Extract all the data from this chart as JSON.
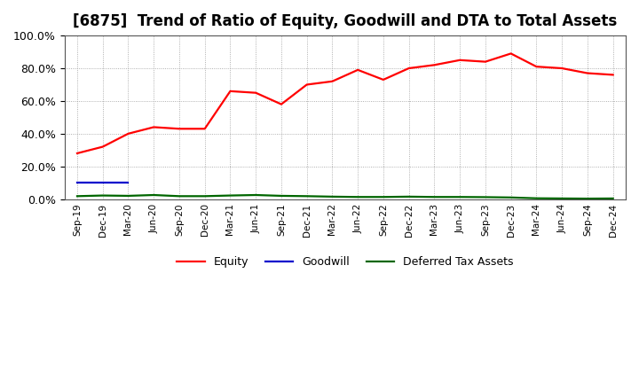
{
  "title": "[6875]  Trend of Ratio of Equity, Goodwill and DTA to Total Assets",
  "x_labels": [
    "Sep-19",
    "Dec-19",
    "Mar-20",
    "Jun-20",
    "Sep-20",
    "Dec-20",
    "Mar-21",
    "Jun-21",
    "Sep-21",
    "Dec-21",
    "Mar-22",
    "Jun-22",
    "Sep-22",
    "Dec-22",
    "Mar-23",
    "Jun-23",
    "Sep-23",
    "Dec-23",
    "Mar-24",
    "Jun-24",
    "Sep-24",
    "Dec-24"
  ],
  "equity": [
    0.28,
    0.32,
    0.4,
    0.44,
    0.43,
    0.43,
    0.66,
    0.65,
    0.58,
    0.7,
    0.72,
    0.79,
    0.73,
    0.8,
    0.82,
    0.85,
    0.84,
    0.89,
    0.81,
    0.8,
    0.77,
    0.76
  ],
  "goodwill": [
    0.1,
    0.1,
    0.1,
    null,
    null,
    null,
    null,
    null,
    null,
    null,
    null,
    null,
    null,
    null,
    null,
    null,
    null,
    null,
    null,
    null,
    null,
    null
  ],
  "dta": [
    0.018,
    0.022,
    0.02,
    0.025,
    0.018,
    0.018,
    0.022,
    0.025,
    0.02,
    0.018,
    0.015,
    0.013,
    0.013,
    0.015,
    0.013,
    0.013,
    0.012,
    0.01,
    0.005,
    0.004,
    0.003,
    0.004
  ],
  "equity_color": "#ff0000",
  "goodwill_color": "#0000cc",
  "dta_color": "#006600",
  "bg_color": "#ffffff",
  "plot_bg_color": "#ffffff",
  "grid_color": "#999999",
  "ylim": [
    0.0,
    1.0
  ],
  "yticks": [
    0.0,
    0.2,
    0.4,
    0.6,
    0.8,
    1.0
  ],
  "title_fontsize": 12,
  "legend_labels": [
    "Equity",
    "Goodwill",
    "Deferred Tax Assets"
  ]
}
